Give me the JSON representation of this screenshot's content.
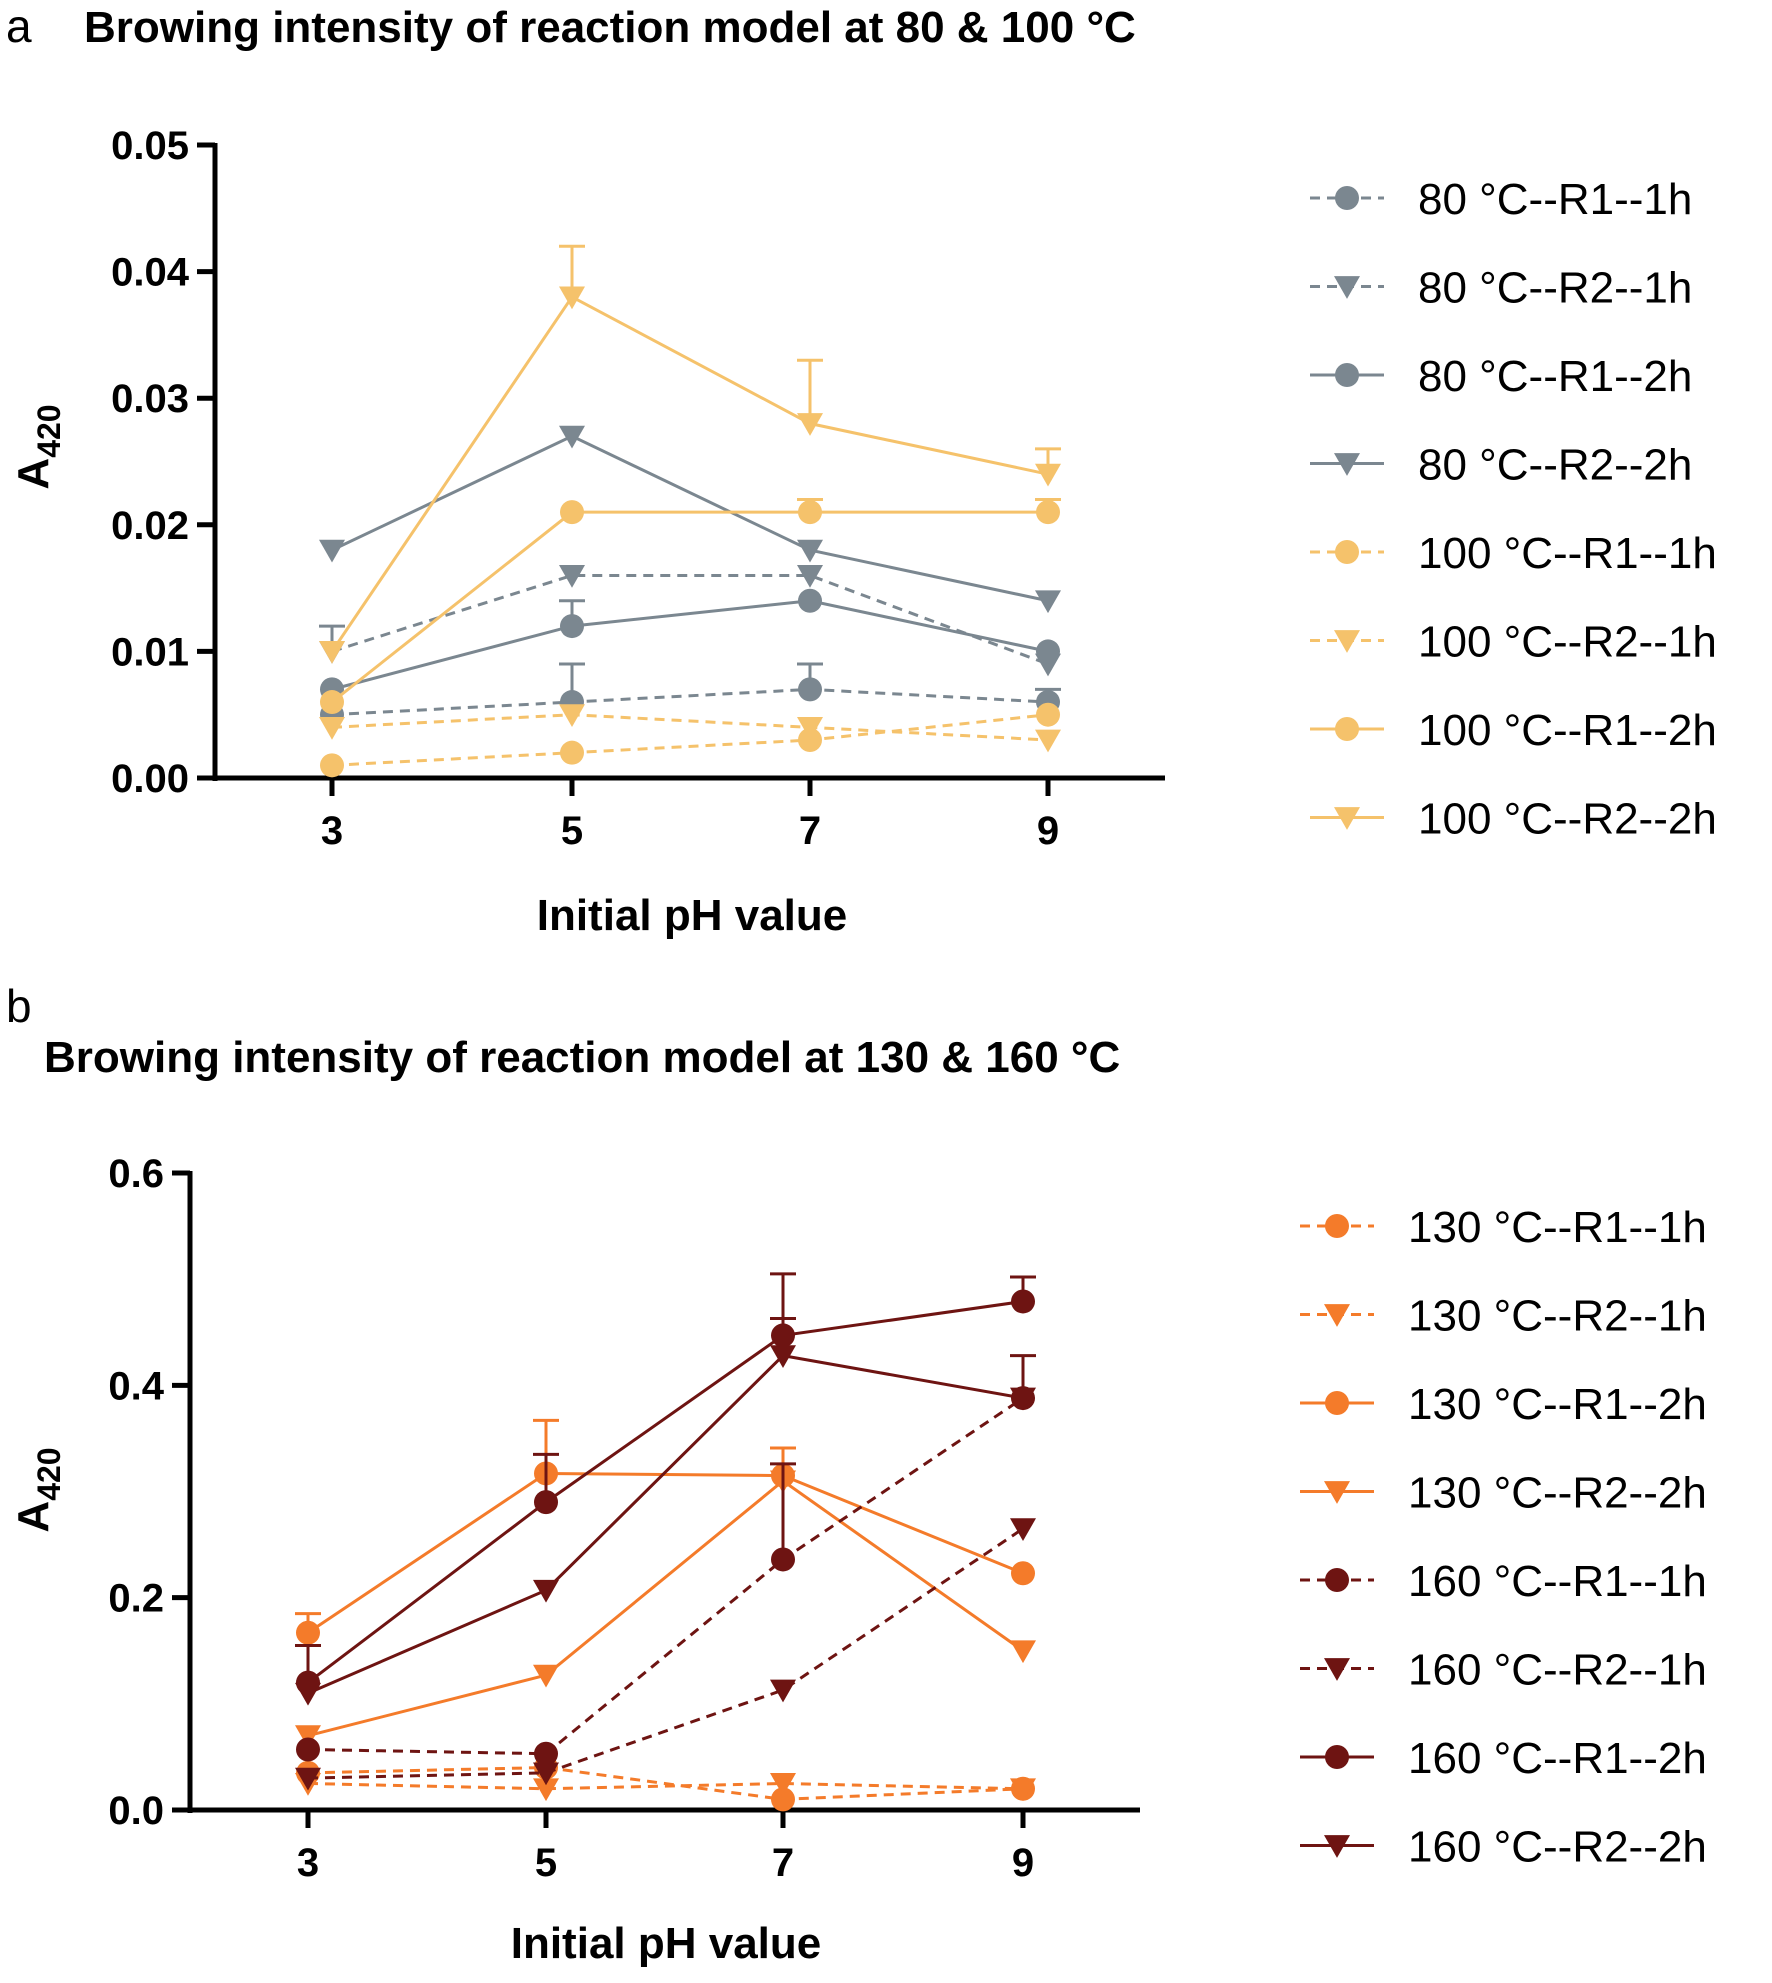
{
  "chart_data": [
    {
      "panel": "a",
      "type": "line",
      "title": "Browing intensity of reaction model at 80 & 100 °C",
      "xlabel": "Initial pH value",
      "ylabel": "A",
      "ylabel_sub": "420",
      "x": [
        3,
        5,
        7,
        9
      ],
      "xticks": [
        "3",
        "5",
        "7",
        "9"
      ],
      "ylim": [
        0,
        0.05
      ],
      "yticks": [
        "0.00",
        "0.01",
        "0.02",
        "0.03",
        "0.04",
        "0.05"
      ],
      "legend_position": "right",
      "grid": false,
      "series": [
        {
          "name": "80 °C--R1--1h",
          "values": [
            0.005,
            0.006,
            0.007,
            0.006
          ],
          "errors": [
            0,
            0.003,
            0.002,
            0.001
          ],
          "marker": "circle",
          "dashed": true,
          "color": "#7b8790"
        },
        {
          "name": "80 °C--R2--1h",
          "values": [
            0.01,
            0.016,
            0.016,
            0.009
          ],
          "errors": [
            0.002,
            0,
            0,
            0
          ],
          "marker": "triangle-down",
          "dashed": true,
          "color": "#7b8790"
        },
        {
          "name": "80 °C--R1--2h",
          "values": [
            0.007,
            0.012,
            0.014,
            0.01
          ],
          "errors": [
            0,
            0.002,
            0,
            0
          ],
          "marker": "circle",
          "dashed": false,
          "color": "#7b8790"
        },
        {
          "name": "80 °C--R2--2h",
          "values": [
            0.018,
            0.027,
            0.018,
            0.014
          ],
          "errors": [
            0,
            0,
            0,
            0
          ],
          "marker": "triangle-down",
          "dashed": false,
          "color": "#7b8790"
        },
        {
          "name": "100 °C--R1--1h",
          "values": [
            0.001,
            0.002,
            0.003,
            0.005
          ],
          "errors": [
            0,
            0,
            0,
            0
          ],
          "marker": "circle",
          "dashed": true,
          "color": "#f5c26b"
        },
        {
          "name": "100 °C--R2--1h",
          "values": [
            0.004,
            0.005,
            0.004,
            0.003
          ],
          "errors": [
            0,
            0,
            0,
            0
          ],
          "marker": "triangle-down",
          "dashed": true,
          "color": "#f5c26b"
        },
        {
          "name": "100 °C--R1--2h",
          "values": [
            0.006,
            0.021,
            0.021,
            0.021
          ],
          "errors": [
            0,
            0,
            0.001,
            0.001
          ],
          "marker": "circle",
          "dashed": false,
          "color": "#f5c26b"
        },
        {
          "name": "100 °C--R2--2h",
          "values": [
            0.01,
            0.038,
            0.028,
            0.024
          ],
          "errors": [
            0,
            0.004,
            0.005,
            0.002
          ],
          "marker": "triangle-down",
          "dashed": false,
          "color": "#f5c26b"
        }
      ]
    },
    {
      "panel": "b",
      "type": "line",
      "title": "Browing intensity of reaction model at 130 & 160 °C",
      "xlabel": "Initial pH value",
      "ylabel": "A",
      "ylabel_sub": "420",
      "x": [
        3,
        5,
        7,
        9
      ],
      "xticks": [
        "3",
        "5",
        "7",
        "9"
      ],
      "ylim": [
        0,
        0.6
      ],
      "yticks": [
        "0.0",
        "0.2",
        "0.4",
        "0.6"
      ],
      "legend_position": "right",
      "grid": false,
      "series": [
        {
          "name": "130 °C--R1--1h",
          "values": [
            0.035,
            0.04,
            0.01,
            0.02
          ],
          "errors": [
            0,
            0,
            0,
            0
          ],
          "marker": "circle",
          "dashed": true,
          "color": "#f47b2a"
        },
        {
          "name": "130 °C--R2--1h",
          "values": [
            0.025,
            0.02,
            0.025,
            0.02
          ],
          "errors": [
            0,
            0,
            0,
            0
          ],
          "marker": "triangle-down",
          "dashed": true,
          "color": "#f47b2a"
        },
        {
          "name": "130 °C--R1--2h",
          "values": [
            0.167,
            0.317,
            0.315,
            0.223
          ],
          "errors": [
            0.018,
            0.05,
            0.026,
            0
          ],
          "marker": "circle",
          "dashed": false,
          "color": "#f47b2a"
        },
        {
          "name": "130 °C--R2--2h",
          "values": [
            0.07,
            0.127,
            0.31,
            0.15
          ],
          "errors": [
            0,
            0,
            0,
            0
          ],
          "marker": "triangle-down",
          "dashed": false,
          "color": "#f47b2a"
        },
        {
          "name": "160 °C--R1--1h",
          "values": [
            0.057,
            0.053,
            0.236,
            0.388
          ],
          "errors": [
            0,
            0,
            0.09,
            0.04
          ],
          "marker": "circle",
          "dashed": true,
          "color": "#6e1412"
        },
        {
          "name": "160 °C--R2--1h",
          "values": [
            0.03,
            0.035,
            0.113,
            0.265
          ],
          "errors": [
            0,
            0,
            0,
            0
          ],
          "marker": "triangle-down",
          "dashed": true,
          "color": "#6e1412"
        },
        {
          "name": "160 °C--R1--2h",
          "values": [
            0.12,
            0.29,
            0.447,
            0.479
          ],
          "errors": [
            0,
            0.045,
            0.058,
            0.023
          ],
          "marker": "circle",
          "dashed": false,
          "color": "#6e1412"
        },
        {
          "name": "160 °C--R2--2h",
          "values": [
            0.11,
            0.207,
            0.428,
            0.388
          ],
          "errors": [
            0.045,
            0,
            0.035,
            0
          ],
          "marker": "triangle-down",
          "dashed": false,
          "color": "#6e1412"
        }
      ]
    }
  ]
}
